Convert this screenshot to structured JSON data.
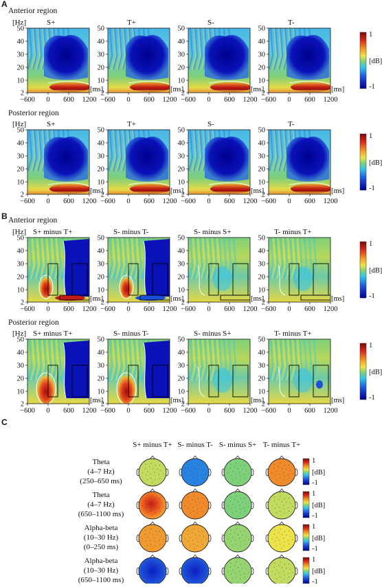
{
  "panels": {
    "A": {
      "letter": "A",
      "regions": [
        {
          "title": "Anterior region",
          "conditions": [
            "S+",
            "T+",
            "S-",
            "T-"
          ]
        },
        {
          "title": "Posterior region",
          "conditions": [
            "S+",
            "T+",
            "S-",
            "T-"
          ]
        }
      ]
    },
    "B": {
      "letter": "B",
      "regions": [
        {
          "title": "Anterior region",
          "conditions": [
            "S+ minus T+",
            "S- minus T-",
            "S- minus S+",
            "T- minus T+"
          ]
        },
        {
          "title": "Posterior region",
          "conditions": [
            "S+ minus T+",
            "S- minus T-",
            "S- minus S+",
            "T- minus T+"
          ]
        }
      ]
    },
    "C": {
      "letter": "C",
      "columns": [
        "S+ minus T+",
        "S- minus T-",
        "S- minus S+",
        "T- minus T+"
      ],
      "rows": [
        {
          "band": "Theta",
          "freq": "(4–7 Hz)",
          "time": "(250–650 ms)",
          "values": [
            0.15,
            -0.45,
            0.0,
            0.55
          ]
        },
        {
          "band": "Theta",
          "freq": "(4–7 Hz)",
          "time": "(650–1100 ms)",
          "values": [
            0.85,
            0.55,
            0.0,
            0.15
          ]
        },
        {
          "band": "Alpha-beta",
          "freq": "(10–30 Hz)",
          "time": "(0–250 ms)",
          "values": [
            0.5,
            0.45,
            0.05,
            0.25
          ]
        },
        {
          "band": "Alpha-beta",
          "freq": "(10–30 Hz)",
          "time": "(650–1100 ms)",
          "values": [
            -0.85,
            -0.95,
            0.05,
            0.15
          ]
        }
      ]
    }
  },
  "axes": {
    "freq_unit": "[Hz]",
    "time_unit": "[ms]",
    "freq_ticks": [
      "50",
      "40",
      "30",
      "20",
      "10",
      "2"
    ],
    "time_ticks": [
      "−600",
      "0",
      "600",
      "1200"
    ]
  },
  "colorbar": {
    "unit": "[dB]",
    "max": "1",
    "min": "-1"
  },
  "colors": {
    "deep_blue": "#00008f",
    "blue": "#1e4fd8",
    "cyan": "#36c5e8",
    "green": "#7fd07a",
    "yellow": "#ece34a",
    "orange": "#f08a2a",
    "red": "#c01b14",
    "dark_red": "#7a0a0a",
    "mask_outline": "#ffffff",
    "roi_box": "#000000"
  },
  "chart_data": [
    {
      "type": "heatmap",
      "title": "Anterior region",
      "xlabel": "[ms]",
      "ylabel": "[Hz]",
      "xlim": [
        -600,
        1200
      ],
      "ylim": [
        2,
        50
      ],
      "x_ticks": [
        -600,
        0,
        600,
        1200
      ],
      "y_ticks": [
        2,
        10,
        20,
        30,
        40,
        50
      ],
      "series": [
        {
          "name": "S+",
          "theta_power_db": 1,
          "alpha_beta_power_db": -1
        },
        {
          "name": "T+",
          "theta_power_db": 1,
          "alpha_beta_power_db": -1
        },
        {
          "name": "S-",
          "theta_power_db": 1,
          "alpha_beta_power_db": -1
        },
        {
          "name": "T-",
          "theta_power_db": 1,
          "alpha_beta_power_db": -1
        }
      ],
      "color_range": [
        -1,
        1
      ]
    },
    {
      "type": "heatmap",
      "title": "Posterior region",
      "xlabel": "[ms]",
      "ylabel": "[Hz]",
      "xlim": [
        -600,
        1200
      ],
      "ylim": [
        2,
        50
      ],
      "series": [
        {
          "name": "S+"
        },
        {
          "name": "T+"
        },
        {
          "name": "S-"
        },
        {
          "name": "T-"
        }
      ],
      "color_range": [
        -1,
        1
      ]
    },
    {
      "type": "heatmap",
      "title": "Anterior region",
      "xlabel": "[ms]",
      "ylabel": "[Hz]",
      "xlim": [
        -600,
        1200
      ],
      "ylim": [
        2,
        50
      ],
      "series": [
        {
          "name": "S+ minus T+"
        },
        {
          "name": "S- minus T-"
        },
        {
          "name": "S- minus S+"
        },
        {
          "name": "T- minus T+"
        }
      ],
      "color_range": [
        -1,
        1
      ]
    },
    {
      "type": "heatmap",
      "title": "Posterior region",
      "xlabel": "[ms]",
      "ylabel": "[Hz]",
      "xlim": [
        -600,
        1200
      ],
      "ylim": [
        2,
        50
      ],
      "series": [
        {
          "name": "S+ minus T+"
        },
        {
          "name": "S- minus T-"
        },
        {
          "name": "S- minus S+"
        },
        {
          "name": "T- minus T+"
        }
      ],
      "color_range": [
        -1,
        1
      ]
    }
  ]
}
